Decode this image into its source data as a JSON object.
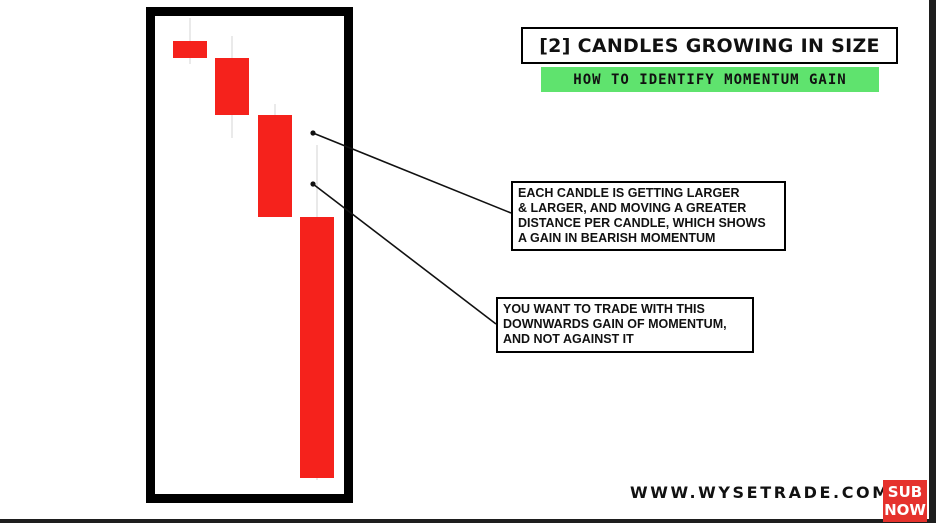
{
  "title": "[2] CANDLES GROWING IN SIZE",
  "subtitle": "HOW TO IDENTIFY MOMENTUM GAIN",
  "callouts": [
    {
      "lines": [
        "EACH CANDLE IS GETTING LARGER",
        "& LARGER,  AND MOVING A GREATER",
        "DISTANCE PER CANDLE, WHICH SHOWS",
        "A GAIN IN BEARISH MOMENTUM"
      ]
    },
    {
      "lines": [
        "YOU WANT TO TRADE WITH THIS",
        "DOWNWARDS GAIN OF MOMENTUM,",
        "AND NOT AGAINST IT"
      ]
    }
  ],
  "brand": "WWW.WYSETRADE.COM",
  "subscribe_badge": {
    "line1": "SUB",
    "line2": "NOW"
  },
  "colors": {
    "bearish_candle": "#f5221c",
    "wick": "#e2e2e2",
    "frame": "#000000",
    "subtitle_bg": "#5fe36e",
    "badge_bg": "#e5322d"
  },
  "candles": [
    {
      "index": 1,
      "direction": "bearish",
      "relative_body_size": 1
    },
    {
      "index": 2,
      "direction": "bearish",
      "relative_body_size": 3.4
    },
    {
      "index": 3,
      "direction": "bearish",
      "relative_body_size": 6
    },
    {
      "index": 4,
      "direction": "bearish",
      "relative_body_size": 15.2
    }
  ]
}
